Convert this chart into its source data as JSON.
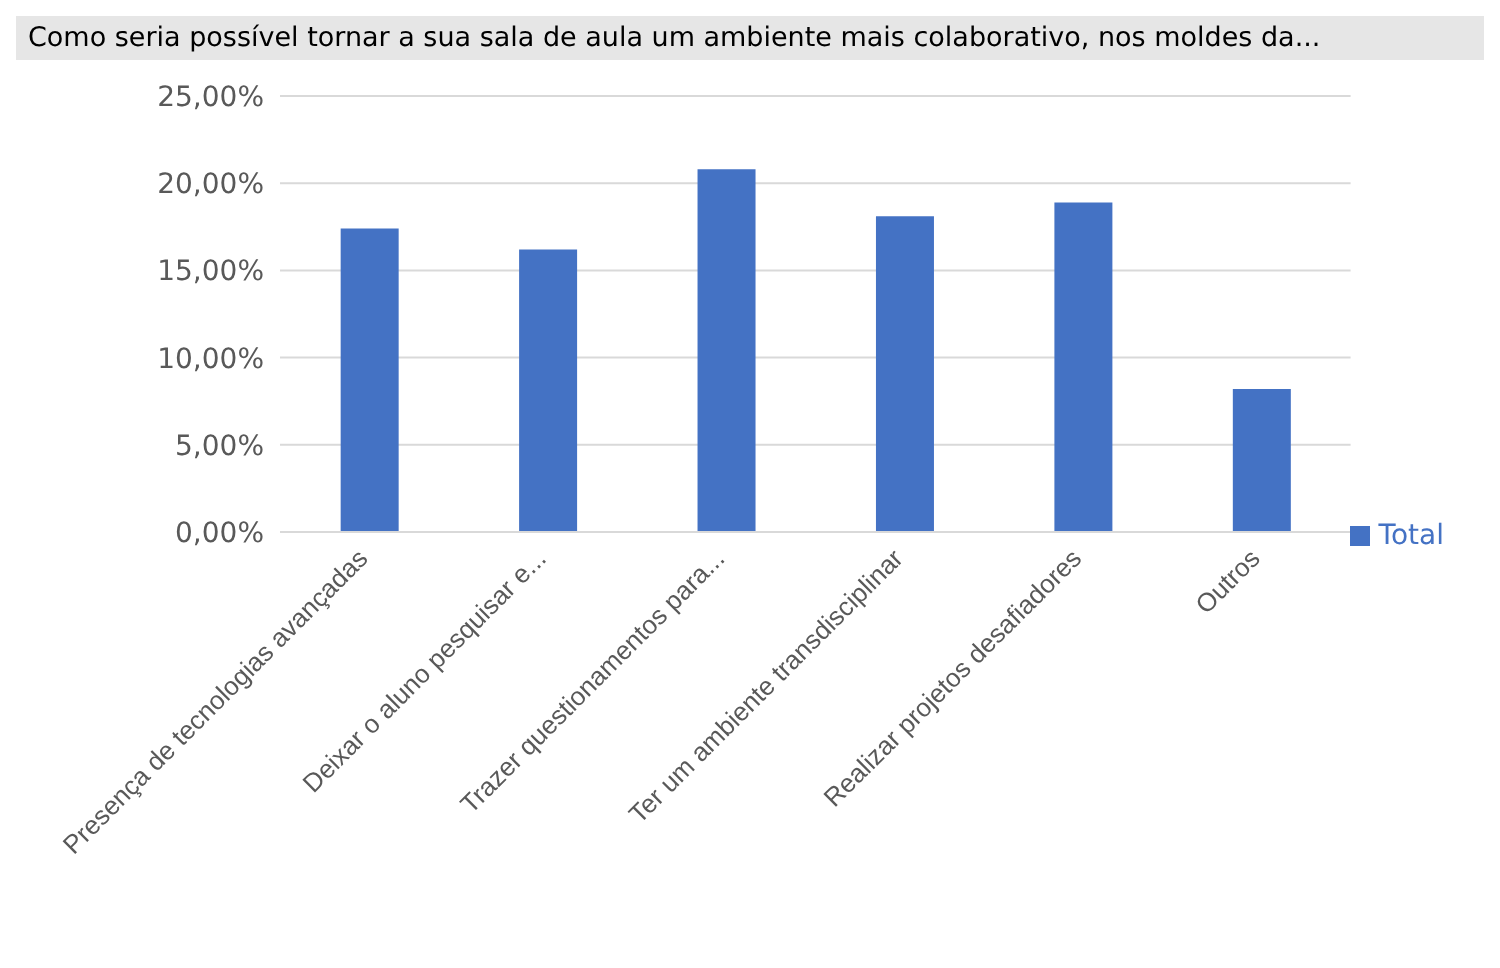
{
  "chart_data": {
    "type": "bar",
    "title": "Como seria possível tornar a sua sala de aula um ambiente mais colaborativo, nos moldes da...",
    "categories": [
      "Presença de tecnologias avançadas",
      "Deixar o aluno pesquisar e...",
      "Trazer questionamentos para...",
      "Ter um ambiente transdisciplinar",
      "Realizar projetos desafiadores",
      "Outros"
    ],
    "series": [
      {
        "name": "Total",
        "color": "#4472c4",
        "values": [
          17.4,
          16.2,
          20.8,
          18.1,
          18.9,
          8.2
        ]
      }
    ],
    "ylim": [
      0,
      25
    ],
    "yticks": [
      {
        "value": 0,
        "label": "0,00%"
      },
      {
        "value": 5,
        "label": "5,00%"
      },
      {
        "value": 10,
        "label": "10,00%"
      },
      {
        "value": 15,
        "label": "15,00%"
      },
      {
        "value": 20,
        "label": "20,00%"
      },
      {
        "value": 25,
        "label": "25,00%"
      }
    ],
    "grid": "y",
    "legend": "right"
  }
}
